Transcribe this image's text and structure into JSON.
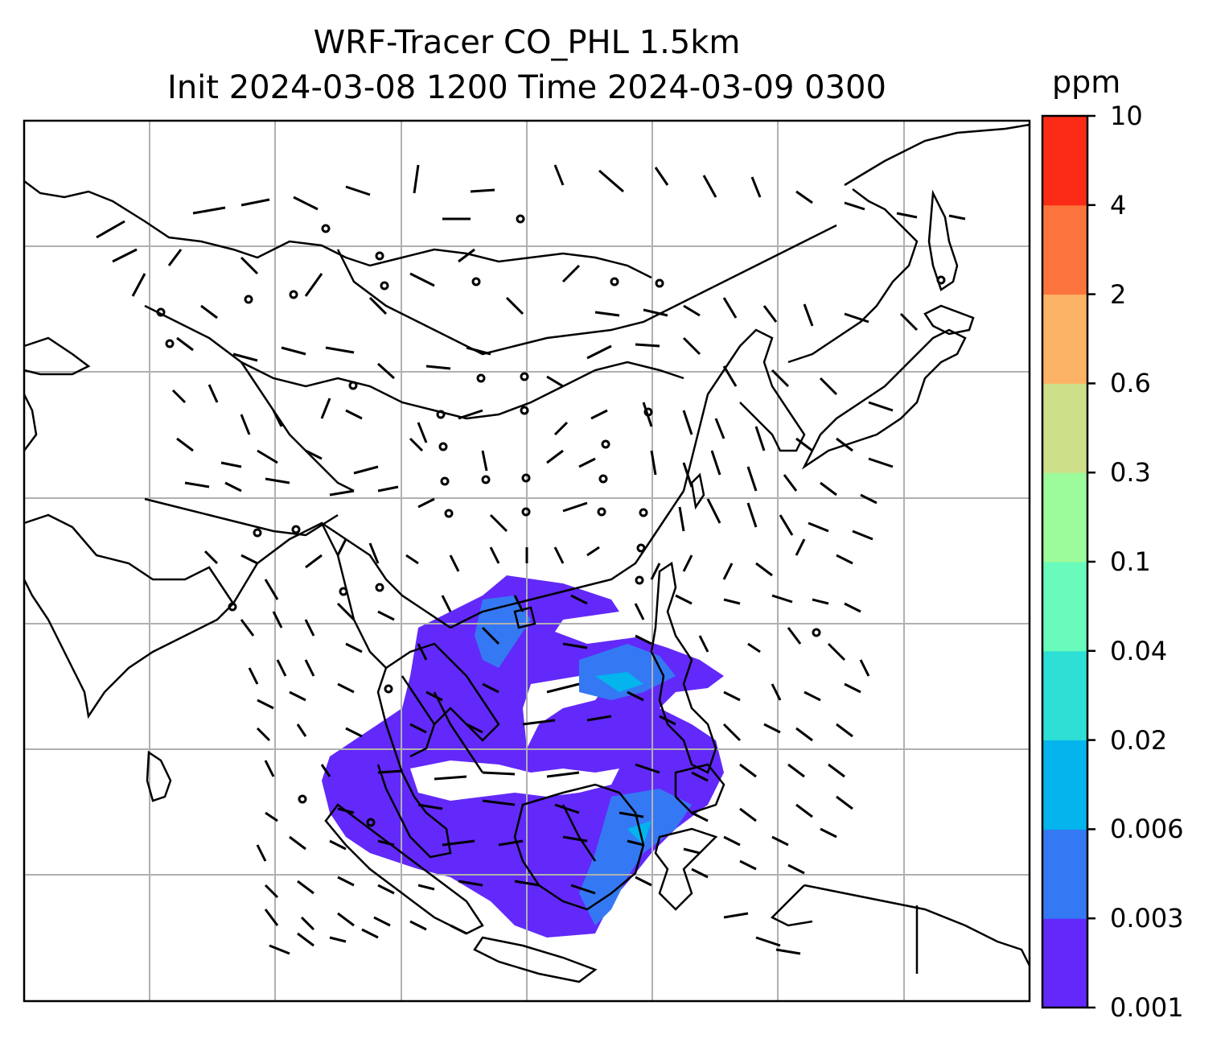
{
  "title_line1": "WRF-Tracer CO_PHL 1.5km",
  "title_line2": "Init 2024-03-08 1200 Time 2024-03-09 0300",
  "colorbar": {
    "unit": "ppm",
    "levels": [
      "0.001",
      "0.003",
      "0.006",
      "0.02",
      "0.04",
      "0.1",
      "0.3",
      "0.6",
      "2",
      "4",
      "10"
    ],
    "colors": [
      "#6229fa",
      "#3479f3",
      "#03b4ed",
      "#2ddfd4",
      "#68fbbc",
      "#9cfb9a",
      "#cde089",
      "#fdb365",
      "#fc743d",
      "#fb2b17"
    ]
  },
  "map": {
    "gridlines": true,
    "layers": [
      "coastlines",
      "country-borders",
      "wind-barbs",
      "tracer-concentration-fill"
    ]
  }
}
